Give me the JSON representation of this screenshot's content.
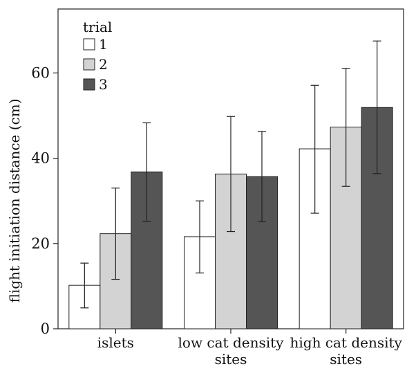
{
  "chart_data": {
    "type": "bar",
    "title": "",
    "xlabel": "",
    "ylabel": "flight initiation distance (cm)",
    "ylim": [
      0,
      75
    ],
    "yticks": [
      0,
      20,
      40,
      60
    ],
    "grid": false,
    "legend": {
      "title": "trial",
      "placement": "top-left"
    },
    "categories": [
      [
        "islets"
      ],
      [
        "low cat density",
        "sites"
      ],
      [
        "high cat density",
        "sites"
      ]
    ],
    "series": [
      {
        "name": "1",
        "color": "#ffffff",
        "values": [
          10.2,
          21.6,
          42.2
        ],
        "error_low": [
          4.9,
          13.1,
          27.1
        ],
        "error_high": [
          15.4,
          30.0,
          57.1
        ]
      },
      {
        "name": "2",
        "color": "#d3d3d3",
        "values": [
          22.3,
          36.3,
          47.3
        ],
        "error_low": [
          11.6,
          22.8,
          33.4
        ],
        "error_high": [
          33.0,
          49.8,
          61.1
        ]
      },
      {
        "name": "3",
        "color": "#555555",
        "values": [
          36.8,
          35.7,
          51.9
        ],
        "error_low": [
          25.2,
          25.1,
          36.4
        ],
        "error_high": [
          48.3,
          46.3,
          67.5
        ]
      }
    ]
  }
}
